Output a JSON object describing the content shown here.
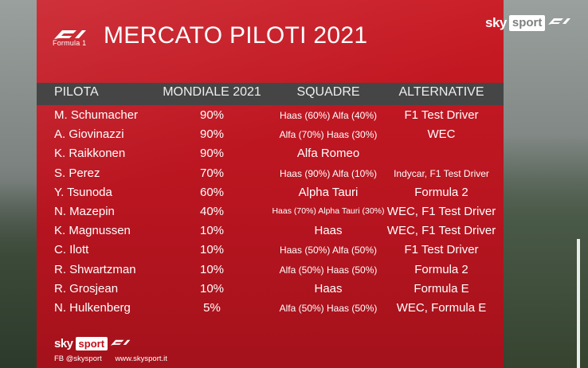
{
  "branding": {
    "f1_caption": "Formula 1",
    "sky_word": "sky",
    "sport_word": "sport",
    "footer_social": "FB @skysport",
    "footer_site": "www.skysport.it"
  },
  "title": "MERCATO PILOTI 2021",
  "colors": {
    "panel_red": "#c91a24",
    "header_bar": "#454545",
    "text": "#ffffff"
  },
  "table": {
    "headers": [
      "PILOTA",
      "MONDIALE 2021",
      "SQUADRE",
      "ALTERNATIVE"
    ],
    "rows": [
      {
        "pilota": "M. Schumacher",
        "mondiale": "90%",
        "squadre": "Haas (60%) Alfa (40%)",
        "alternative": "F1 Test Driver"
      },
      {
        "pilota": "A. Giovinazzi",
        "mondiale": "90%",
        "squadre": "Alfa (70%) Haas (30%)",
        "alternative": "WEC"
      },
      {
        "pilota": "K. Raikkonen",
        "mondiale": "90%",
        "squadre": "Alfa Romeo",
        "alternative": ""
      },
      {
        "pilota": "S. Perez",
        "mondiale": "70%",
        "squadre": "Haas (90%) Alfa (10%)",
        "alternative": "Indycar, F1 Test Driver"
      },
      {
        "pilota": "Y. Tsunoda",
        "mondiale": "60%",
        "squadre": "Alpha Tauri",
        "alternative": "Formula 2"
      },
      {
        "pilota": "N. Mazepin",
        "mondiale": "40%",
        "squadre": "Haas (70%) Alpha Tauri (30%)",
        "alternative": "WEC, F1 Test Driver"
      },
      {
        "pilota": "K. Magnussen",
        "mondiale": "10%",
        "squadre": "Haas",
        "alternative": "WEC, F1 Test Driver"
      },
      {
        "pilota": "C. Ilott",
        "mondiale": "10%",
        "squadre": "Haas (50%) Alfa (50%)",
        "alternative": "F1 Test Driver"
      },
      {
        "pilota": "R. Shwartzman",
        "mondiale": "10%",
        "squadre": "Alfa (50%) Haas (50%)",
        "alternative": "Formula 2"
      },
      {
        "pilota": "R. Grosjean",
        "mondiale": "10%",
        "squadre": "Haas",
        "alternative": "Formula E"
      },
      {
        "pilota": "N. Hulkenberg",
        "mondiale": "5%",
        "squadre": "Alfa (50%) Haas (50%)",
        "alternative": "WEC, Formula E"
      }
    ]
  }
}
